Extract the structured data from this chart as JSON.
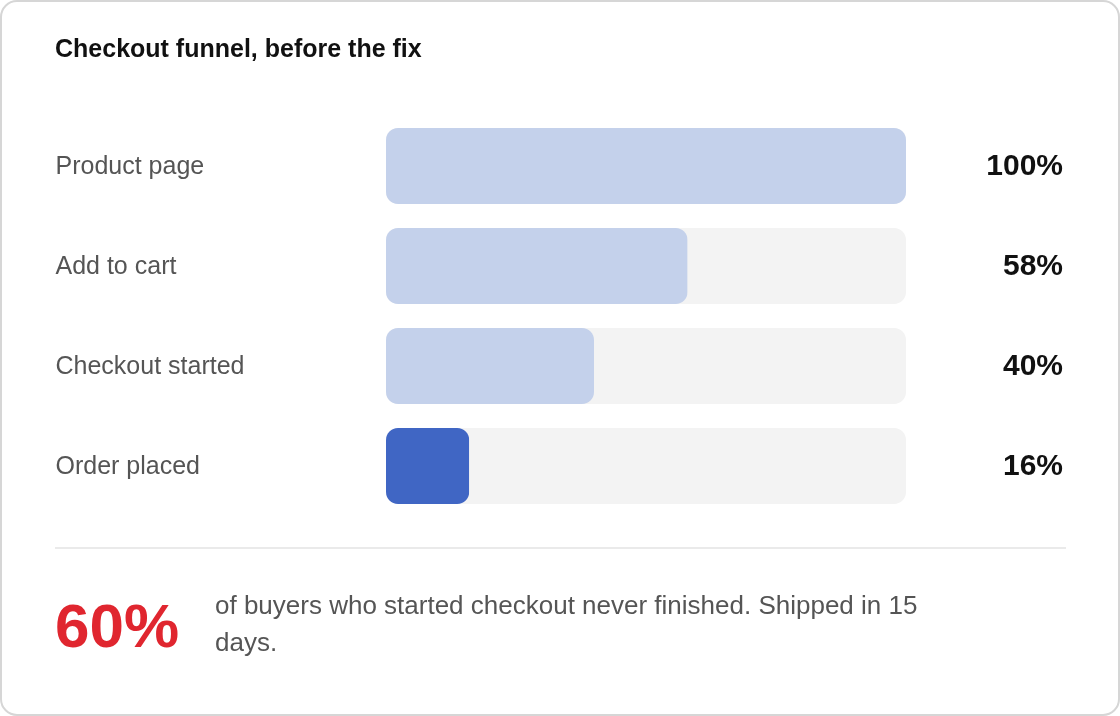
{
  "chart_data": {
    "type": "bar",
    "orientation": "horizontal",
    "title": "Checkout funnel, before the fix",
    "categories": [
      "Product page",
      "Add to cart",
      "Checkout started",
      "Order placed"
    ],
    "values": [
      100,
      58,
      40,
      16
    ],
    "colors": [
      "#c4d1eb",
      "#c4d1eb",
      "#c4d1eb",
      "#4066c4"
    ],
    "value_labels": [
      "100%",
      "58%",
      "40%",
      "16%"
    ],
    "xlim": [
      0,
      100
    ],
    "tick_labels": "y",
    "annotations": [
      "60%",
      "of buyers who started checkout never finished. Shipped in 15 days."
    ]
  }
}
